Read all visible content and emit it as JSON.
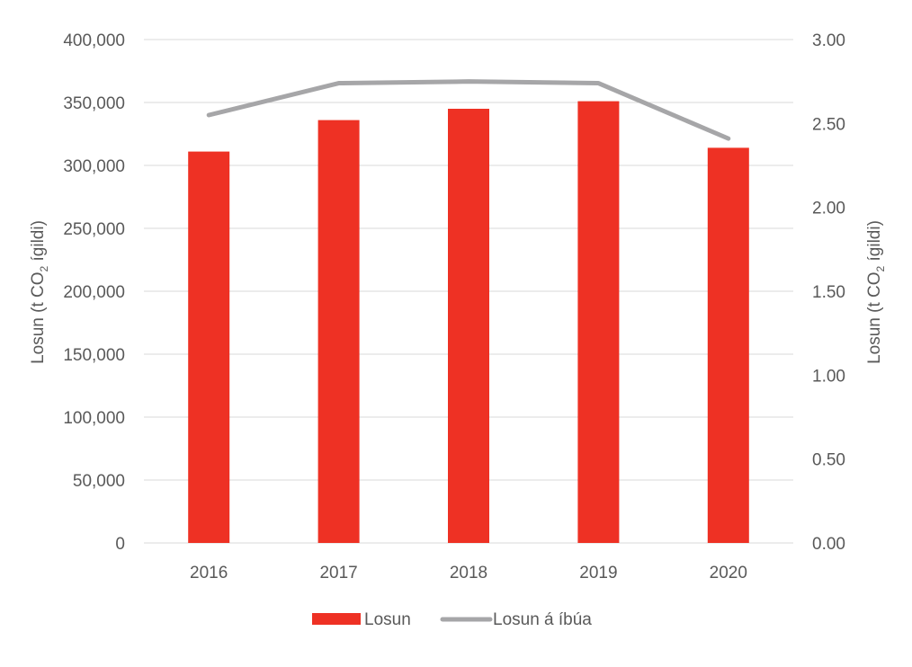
{
  "chart_data": {
    "type": "bar+line",
    "categories": [
      "2016",
      "2017",
      "2018",
      "2019",
      "2020"
    ],
    "series": [
      {
        "name": "Losun",
        "type": "bar",
        "axis": "left",
        "color": "#ee3124",
        "values": [
          311000,
          336000,
          345000,
          351000,
          314000
        ]
      },
      {
        "name": "Losun á íbúa",
        "type": "line",
        "axis": "right",
        "color": "#a6a6a8",
        "values": [
          2.55,
          2.74,
          2.75,
          2.74,
          2.41
        ]
      }
    ],
    "y_left": {
      "label_prefix": "Losun (t CO",
      "label_sub": "2",
      "label_suffix": " ígildi)",
      "ylim": [
        0,
        400000
      ],
      "ticks": [
        "0",
        "50,000",
        "100,000",
        "150,000",
        "200,000",
        "250,000",
        "300,000",
        "350,000",
        "400,000"
      ]
    },
    "y_right": {
      "label_prefix": "Losun (t CO",
      "label_sub": "2",
      "label_suffix": " ígildi)",
      "ylim": [
        0,
        3
      ],
      "ticks": [
        "0.00",
        "0.50",
        "1.00",
        "1.50",
        "2.00",
        "2.50",
        "3.00"
      ]
    },
    "grid": true,
    "gridline_color": "#d9d9d9",
    "legend_position": "bottom"
  }
}
